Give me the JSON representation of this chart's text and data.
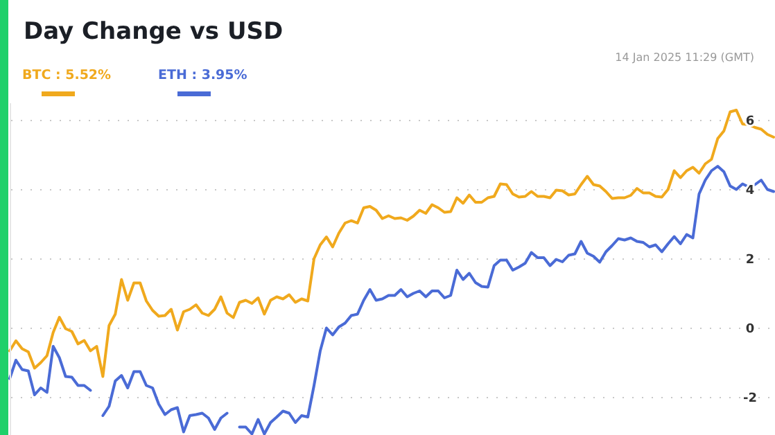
{
  "chart_data": {
    "type": "line",
    "title": "Day Change vs USD",
    "annotations": [
      "14 Jan 2025 11:29 (GMT)"
    ],
    "categories": [
      null,
      null,
      null,
      null,
      null,
      null,
      null,
      null,
      null,
      null,
      null,
      null,
      null,
      null,
      null,
      null,
      null,
      null,
      null,
      null,
      null,
      null,
      null,
      null,
      null,
      null,
      null,
      null,
      null,
      null,
      null,
      null,
      null,
      null,
      null,
      null,
      null,
      null,
      null,
      null,
      null,
      null,
      null,
      null,
      null,
      null,
      null,
      null,
      null,
      null,
      null,
      null,
      null,
      null,
      null,
      null,
      null,
      null,
      null,
      null,
      null,
      null,
      null,
      null,
      null,
      null,
      null,
      null,
      null,
      null,
      null,
      null,
      null,
      null,
      null,
      null,
      null,
      null,
      null,
      null,
      null,
      null,
      null,
      null,
      null,
      null,
      null,
      null,
      null,
      null,
      null,
      null,
      null,
      null,
      null,
      null,
      null,
      null,
      null,
      null,
      null,
      null,
      null,
      null,
      null,
      null,
      null,
      null,
      null,
      null,
      null,
      null,
      null,
      null,
      null,
      null,
      null,
      null,
      null,
      null,
      null,
      null,
      null,
      null
    ],
    "ylim": [
      -3.1,
      6.5
    ],
    "yticks": [
      -2,
      0,
      2,
      4,
      6
    ],
    "grid": "y",
    "marker": "none",
    "line_style": "solid",
    "series": [
      {
        "name": "BTC : 5.52%",
        "color": "#f0a91d",
        "values": [
          -0.65,
          -0.36,
          -0.59,
          -0.68,
          -1.15,
          -0.99,
          -0.79,
          -0.12,
          0.32,
          -0.01,
          -0.09,
          -0.45,
          -0.35,
          -0.65,
          -0.52,
          -1.39,
          0.08,
          0.41,
          1.41,
          0.81,
          1.31,
          1.31,
          0.79,
          0.52,
          0.35,
          0.37,
          0.55,
          -0.05,
          0.48,
          0.55,
          0.68,
          0.44,
          0.37,
          0.55,
          0.91,
          0.44,
          0.31,
          0.75,
          0.81,
          0.72,
          0.88,
          0.41,
          0.81,
          0.91,
          0.85,
          0.97,
          0.75,
          0.85,
          0.79,
          2.01,
          2.41,
          2.64,
          2.35,
          2.75,
          3.04,
          3.11,
          3.04,
          3.48,
          3.52,
          3.41,
          3.17,
          3.25,
          3.17,
          3.19,
          3.12,
          3.24,
          3.41,
          3.32,
          3.57,
          3.48,
          3.35,
          3.37,
          3.77,
          3.61,
          3.85,
          3.64,
          3.64,
          3.77,
          3.81,
          4.17,
          4.15,
          3.88,
          3.79,
          3.81,
          3.95,
          3.81,
          3.81,
          3.77,
          3.99,
          3.97,
          3.85,
          3.88,
          4.15,
          4.39,
          4.15,
          4.11,
          3.95,
          3.75,
          3.77,
          3.77,
          3.84,
          4.04,
          3.91,
          3.91,
          3.81,
          3.79,
          4.01,
          4.55,
          4.35,
          4.55,
          4.65,
          4.48,
          4.75,
          4.88,
          5.48,
          5.7,
          6.25,
          6.3,
          5.9,
          5.88,
          5.8,
          5.75,
          5.6,
          5.52
        ]
      },
      {
        "name": "ETH : 3.95%",
        "color": "#4a6bd6",
        "values": [
          -1.45,
          -0.92,
          -1.19,
          -1.23,
          -1.92,
          -1.72,
          -1.85,
          -0.52,
          -0.85,
          -1.39,
          -1.41,
          -1.65,
          -1.65,
          -1.79,
          null,
          -2.52,
          -2.25,
          -1.52,
          -1.36,
          -1.72,
          -1.25,
          -1.25,
          -1.65,
          -1.72,
          -2.19,
          -2.49,
          -2.35,
          -2.29,
          -2.99,
          -2.52,
          -2.49,
          -2.45,
          -2.59,
          -2.92,
          -2.59,
          -2.45,
          null,
          -2.85,
          -2.85,
          -3.05,
          -2.63,
          -3.05,
          -2.72,
          -2.56,
          -2.39,
          -2.45,
          -2.72,
          -2.52,
          -2.56,
          -1.65,
          -0.65,
          0.01,
          -0.19,
          0.04,
          0.15,
          0.37,
          0.41,
          0.81,
          1.12,
          0.81,
          0.85,
          0.95,
          0.95,
          1.12,
          0.91,
          1.01,
          1.08,
          0.91,
          1.08,
          1.08,
          0.88,
          0.95,
          1.68,
          1.41,
          1.59,
          1.32,
          1.21,
          1.19,
          1.81,
          1.97,
          1.97,
          1.68,
          1.77,
          1.88,
          2.19,
          2.04,
          2.04,
          1.81,
          1.99,
          1.92,
          2.11,
          2.15,
          2.51,
          2.17,
          2.08,
          1.91,
          2.21,
          2.39,
          2.59,
          2.55,
          2.61,
          2.51,
          2.48,
          2.35,
          2.41,
          2.21,
          2.44,
          2.65,
          2.44,
          2.71,
          2.61,
          3.88,
          4.28,
          4.55,
          4.68,
          4.52,
          4.11,
          4.01,
          4.17,
          4.08,
          4.15,
          4.28,
          4.01,
          3.95
        ]
      }
    ]
  }
}
